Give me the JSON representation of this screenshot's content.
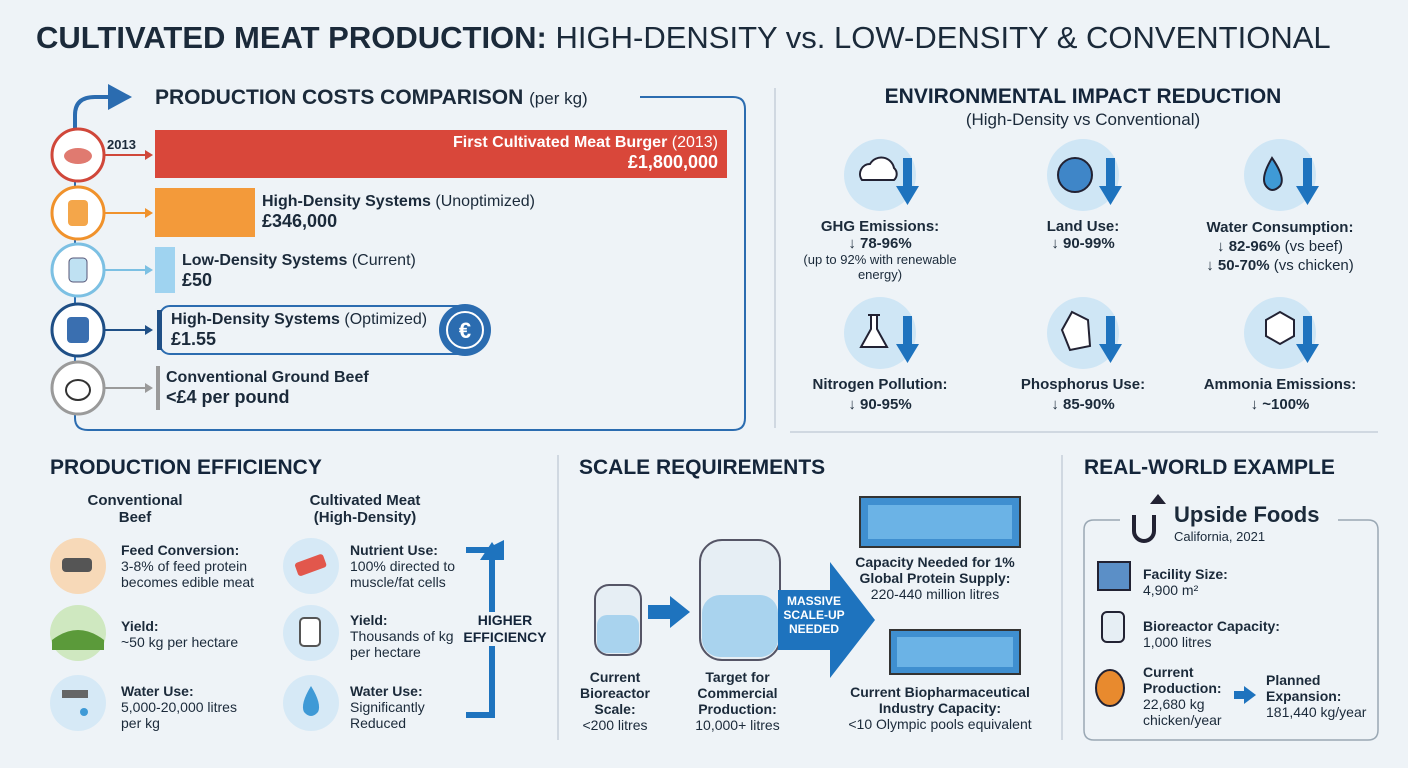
{
  "title": {
    "bold": "CULTIVATED MEAT PRODUCTION:",
    "rest": "HIGH-DENSITY vs. LOW-DENSITY & CONVENTIONAL"
  },
  "costs": {
    "title": "PRODUCTION COSTS COMPARISON",
    "unit": "(per kg)",
    "year": "2013",
    "items": [
      {
        "name": "First Cultivated Meat Burger",
        "note": "(2013)",
        "value": "£1,800,000"
      },
      {
        "name": "High-Density Systems",
        "note": "(Unoptimized)",
        "value": "£346,000"
      },
      {
        "name": "Low-Density Systems",
        "note": "(Current)",
        "value": "£50"
      },
      {
        "name": "High-Density Systems",
        "note": "(Optimized)",
        "value": "£1.55"
      },
      {
        "name": "Conventional Ground Beef",
        "value": "<£4 per pound"
      }
    ]
  },
  "environment": {
    "title": "ENVIRONMENTAL IMPACT REDUCTION",
    "subtitle": "(High-Density vs Conventional)",
    "items": [
      {
        "label": "GHG Emissions:",
        "value": "↓ 78-96%",
        "note": "(up to 92% with renewable energy)"
      },
      {
        "label": "Land Use:",
        "value": "↓ 90-99%"
      },
      {
        "label": "Water Consumption:",
        "value": "↓ 82-96%",
        "note": "(vs beef)",
        "value2": "↓ 50-70%",
        "note2": "(vs chicken)"
      },
      {
        "label": "Nitrogen Pollution:",
        "value": "↓ 90-95%"
      },
      {
        "label": "Phosphorus Use:",
        "value": "↓ 85-90%"
      },
      {
        "label": "Ammonia Emissions:",
        "value": "↓ ~100%"
      }
    ]
  },
  "efficiency": {
    "title": "PRODUCTION EFFICIENCY",
    "conventional": {
      "heading": "Conventional Beef",
      "rows": [
        {
          "label": "Feed Conversion:",
          "text": "3-8% of feed protein becomes edible meat"
        },
        {
          "label": "Yield:",
          "text": "~50 kg per hectare"
        },
        {
          "label": "Water Use:",
          "text": "5,000-20,000 litres per kg"
        }
      ]
    },
    "cultivated": {
      "heading": "Cultivated Meat (High-Density)",
      "rows": [
        {
          "label": "Nutrient Use:",
          "text": "100% directed to muscle/fat cells"
        },
        {
          "label": "Yield:",
          "text": "Thousands of kg per hectare"
        },
        {
          "label": "Water Use:",
          "text": "Significantly Reduced"
        }
      ]
    },
    "arrow_label": "HIGHER EFFICIENCY"
  },
  "scale": {
    "title": "SCALE REQUIREMENTS",
    "current": {
      "label": "Current Bioreactor Scale:",
      "value": "<200 litres"
    },
    "target": {
      "label": "Target for Commercial Production:",
      "value": "10,000+ litres"
    },
    "arrow_label": "MASSIVE SCALE-UP NEEDED",
    "needed": {
      "label": "Capacity Needed for 1% Global Protein Supply:",
      "value": "220-440 million litres"
    },
    "industry": {
      "label": "Current Biopharmaceutical Industry Capacity:",
      "value": "<10 Olympic pools equivalent"
    }
  },
  "example": {
    "title": "REAL-WORLD EXAMPLE",
    "company": "Upside Foods",
    "location": "California, 2021",
    "items": [
      {
        "label": "Facility Size:",
        "value": "4,900 m²"
      },
      {
        "label": "Bioreactor Capacity:",
        "value": "1,000 litres"
      },
      {
        "label": "Current Production:",
        "value": "22,680 kg chicken/year"
      },
      {
        "label": "Planned Expansion:",
        "value": "181,440 kg/year"
      }
    ]
  }
}
